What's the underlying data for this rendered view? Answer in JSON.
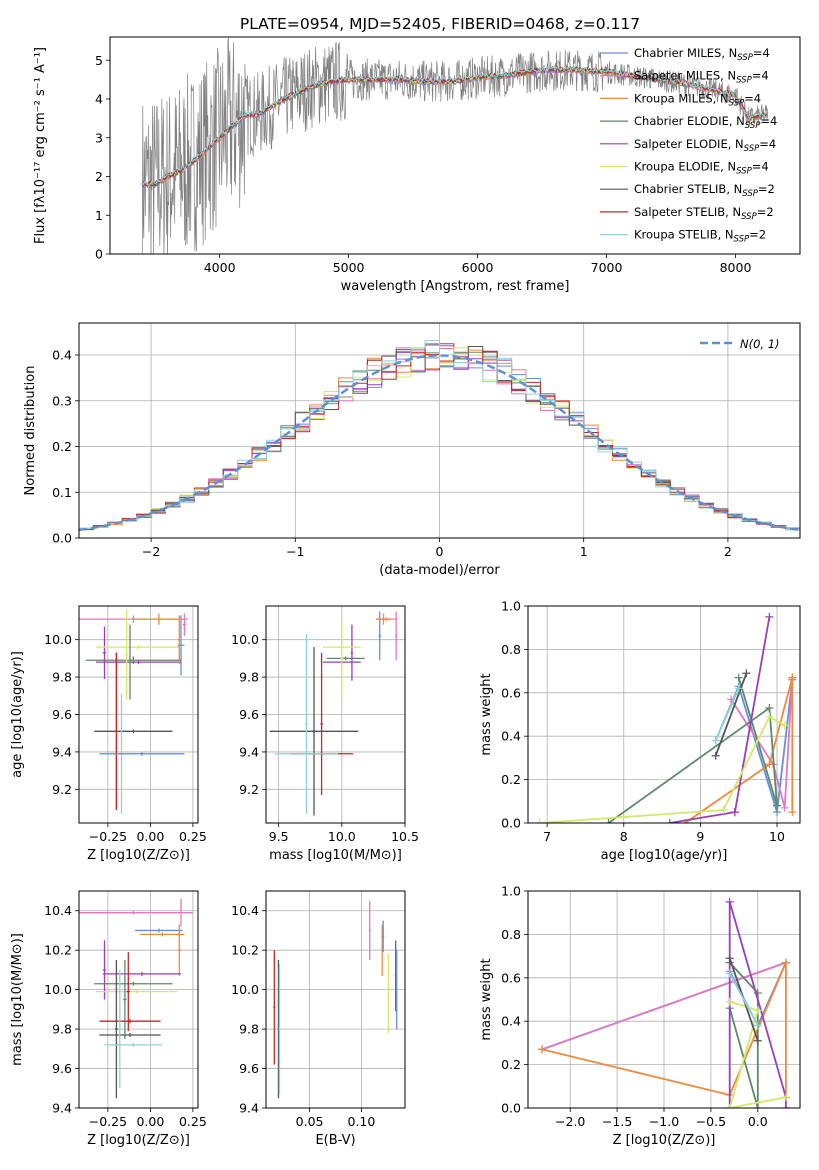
{
  "figure": {
    "title": "PLATE=0954, MJD=52405, FIBERID=0468, z=0.117"
  },
  "series_legend": [
    {
      "name": "Chabrier MILES, N",
      "sub": "SSP",
      "tail": "=4",
      "color": "#6a8fd8"
    },
    {
      "name": "Salpeter MILES, N",
      "sub": "SSP",
      "tail": "=4",
      "color": "#e377c2"
    },
    {
      "name": "Kroupa MILES, N",
      "sub": "SSP",
      "tail": "=4",
      "color": "#ee8a3c"
    },
    {
      "name": "Chabrier ELODIE, N",
      "sub": "SSP",
      "tail": "=4",
      "color": "#5d8a68"
    },
    {
      "name": "Salpeter ELODIE, N",
      "sub": "SSP",
      "tail": "=4",
      "color": "#9b3fb5"
    },
    {
      "name": "Kroupa ELODIE, N",
      "sub": "SSP",
      "tail": "=4",
      "color": "#d4e86a"
    },
    {
      "name": "Chabrier STELIB, N",
      "sub": "SSP",
      "tail": "=2",
      "color": "#555555"
    },
    {
      "name": "Salpeter STELIB, N",
      "sub": "SSP",
      "tail": "=2",
      "color": "#c62828"
    },
    {
      "name": "Kroupa STELIB, N",
      "sub": "SSP",
      "tail": "=2",
      "color": "#8fd3d8"
    }
  ],
  "chart_data": [
    {
      "id": "spectrum",
      "type": "line",
      "xlabel": "wavelength [Angstrom, rest frame]",
      "ylabel": "Flux [fλ10⁻¹⁷ erg cm⁻² s⁻¹ A⁻¹]",
      "xlim": [
        3150,
        8500
      ],
      "ylim": [
        0,
        5.6
      ],
      "xticks": [
        4000,
        5000,
        6000,
        7000,
        8000
      ],
      "yticks": [
        0,
        1,
        2,
        3,
        4,
        5
      ],
      "observed_color": "#808080",
      "model_color": "#7fd6d6",
      "model": {
        "x": [
          3400,
          3500,
          3600,
          3700,
          3800,
          3900,
          4000,
          4100,
          4200,
          4300,
          4400,
          4500,
          4600,
          4700,
          4800,
          4900,
          5000,
          5200,
          5400,
          5600,
          5800,
          6000,
          6200,
          6400,
          6600,
          6800,
          7000,
          7200,
          7400,
          7600,
          7800,
          8000,
          8100,
          8250
        ],
        "y": [
          1.8,
          1.8,
          2.0,
          2.15,
          2.4,
          2.7,
          3.0,
          3.3,
          3.6,
          3.6,
          3.8,
          4.0,
          4.15,
          4.3,
          4.4,
          4.45,
          4.5,
          4.5,
          4.5,
          4.45,
          4.45,
          4.55,
          4.6,
          4.7,
          4.75,
          4.75,
          4.7,
          4.6,
          4.5,
          4.4,
          4.25,
          4.1,
          3.5,
          3.6
        ]
      }
    },
    {
      "id": "residuals",
      "type": "histogram",
      "xlabel": "(data-model)/error",
      "ylabel": "Normed distribution",
      "xlim": [
        -2.5,
        2.5
      ],
      "ylim": [
        0,
        0.47
      ],
      "xticks": [
        -2,
        -1,
        0,
        1,
        2
      ],
      "xticklabels": [
        "−2",
        "−1",
        "0",
        "1",
        "2"
      ],
      "yticks": [
        0.0,
        0.1,
        0.2,
        0.3,
        0.4
      ],
      "reference_label": "N(0, 1)",
      "reference_color": "#5b8fd6",
      "bin_width": 0.1
    },
    {
      "id": "age_vs_Z",
      "type": "errorbar",
      "xlabel": "Z [log10(Z/Z⊙)]",
      "ylabel": "age  [log10(age/yr)]",
      "xlim": [
        -0.42,
        0.28
      ],
      "ylim": [
        9.02,
        10.18
      ],
      "xticks": [
        -0.25,
        0.0,
        0.25
      ],
      "xticklabels": [
        "−0.25",
        "0.00",
        "0.25"
      ],
      "yticks": [
        9.2,
        9.4,
        9.6,
        9.8,
        10.0
      ],
      "points": [
        {
          "s": 0,
          "x": 0.18,
          "y": 9.97,
          "xe": 0.02,
          "ye": 0.16
        },
        {
          "s": 1,
          "x": -0.1,
          "y": 10.11,
          "xe": 0.32,
          "ye": 0.02
        },
        {
          "s": 2,
          "x": 0.05,
          "y": 10.11,
          "xe": 0.15,
          "ye": 0.03
        },
        {
          "s": 3,
          "x": -0.1,
          "y": 9.89,
          "xe": 0.28,
          "ye": 0.02
        },
        {
          "s": 4,
          "x": -0.07,
          "y": 9.88,
          "xe": 0.25,
          "ye": 0.01
        },
        {
          "s": 4,
          "x": -0.27,
          "y": 9.93,
          "xe": 0.01,
          "ye": 0.14
        },
        {
          "s": 5,
          "x": -0.07,
          "y": 9.96,
          "xe": 0.25,
          "ye": 0.01
        },
        {
          "s": 5,
          "x": -0.14,
          "y": 9.92,
          "xe": 0.01,
          "ye": 0.24
        },
        {
          "s": 3,
          "x": -0.12,
          "y": 9.88,
          "xe": 0.01,
          "ye": 0.2
        },
        {
          "s": 6,
          "x": -0.2,
          "y": 9.51,
          "xe": 0.01,
          "ye": 0.42
        },
        {
          "s": 6,
          "x": -0.1,
          "y": 9.51,
          "xe": 0.23,
          "ye": 0.01
        },
        {
          "s": 7,
          "x": -0.2,
          "y": 9.51,
          "xe": 0.01,
          "ye": 0.42
        },
        {
          "s": 8,
          "x": -0.17,
          "y": 9.39,
          "xe": 0.01,
          "ye": 0.32
        },
        {
          "s": 8,
          "x": -0.05,
          "y": 9.39,
          "xe": 0.25,
          "ye": 0.01
        },
        {
          "s": 0,
          "x": -0.05,
          "y": 9.39,
          "xe": 0.25,
          "ye": 0.01
        },
        {
          "s": 2,
          "x": 0.17,
          "y": 10.0,
          "xe": 0.01,
          "ye": 0.13
        },
        {
          "s": 1,
          "x": 0.2,
          "y": 10.08,
          "xe": 0.01,
          "ye": 0.06
        }
      ]
    },
    {
      "id": "age_vs_mass",
      "type": "errorbar",
      "xlabel": "mass [log10(M/M⊙)]",
      "ylabel": "",
      "xlim": [
        9.4,
        10.5
      ],
      "ylim": [
        9.02,
        10.18
      ],
      "xticks": [
        9.5,
        10.0,
        10.5
      ],
      "xticklabels": [
        "9.5",
        "10.0",
        "10.5"
      ],
      "yticks": [
        9.2,
        9.4,
        9.6,
        9.8,
        10.0
      ],
      "points": [
        {
          "s": 0,
          "x": 10.3,
          "y": 10.02,
          "xe": 0.01,
          "ye": 0.13
        },
        {
          "s": 1,
          "x": 10.35,
          "y": 10.11,
          "xe": 0.08,
          "ye": 0.01
        },
        {
          "s": 1,
          "x": 10.43,
          "y": 10.02,
          "xe": 0.01,
          "ye": 0.13
        },
        {
          "s": 2,
          "x": 10.33,
          "y": 10.11,
          "xe": 0.06,
          "ye": 0.03
        },
        {
          "s": 3,
          "x": 10.03,
          "y": 9.9,
          "xe": 0.15,
          "ye": 0.01
        },
        {
          "s": 4,
          "x": 10.0,
          "y": 9.88,
          "xe": 0.15,
          "ye": 0.01
        },
        {
          "s": 4,
          "x": 10.08,
          "y": 9.93,
          "xe": 0.01,
          "ye": 0.15
        },
        {
          "s": 5,
          "x": 10.0,
          "y": 9.96,
          "xe": 0.15,
          "ye": 0.01
        },
        {
          "s": 5,
          "x": 10.0,
          "y": 9.9,
          "xe": 0.01,
          "ye": 0.2
        },
        {
          "s": 6,
          "x": 9.78,
          "y": 9.51,
          "xe": 0.35,
          "ye": 0.01
        },
        {
          "s": 6,
          "x": 9.78,
          "y": 9.51,
          "xe": 0.01,
          "ye": 0.45
        },
        {
          "s": 7,
          "x": 9.84,
          "y": 9.39,
          "xe": 0.25,
          "ye": 0.01
        },
        {
          "s": 7,
          "x": 9.84,
          "y": 9.55,
          "xe": 0.01,
          "ye": 0.38
        },
        {
          "s": 8,
          "x": 9.72,
          "y": 9.39,
          "xe": 0.25,
          "ye": 0.01
        },
        {
          "s": 8,
          "x": 9.72,
          "y": 9.55,
          "xe": 0.01,
          "ye": 0.48
        }
      ]
    },
    {
      "id": "massweight_vs_age",
      "type": "line",
      "xlabel": "age  [log10(age/yr)]",
      "ylabel": "mass weight",
      "xlim": [
        6.75,
        10.3
      ],
      "ylim": [
        0,
        1.0
      ],
      "xticks": [
        7,
        8,
        9,
        10
      ],
      "yticks": [
        0.0,
        0.2,
        0.4,
        0.6,
        0.8,
        1.0
      ],
      "lines": [
        {
          "s": 0,
          "x": [
            9.2,
            9.5,
            10.0,
            10.2
          ],
          "y": [
            0.38,
            0.63,
            0.05,
            0.66
          ]
        },
        {
          "s": 1,
          "x": [
            9.4,
            9.95,
            10.1,
            10.2
          ],
          "y": [
            0.57,
            0.27,
            0.07,
            0.67
          ]
        },
        {
          "s": 2,
          "x": [
            8.8,
            9.9,
            10.2,
            10.2
          ],
          "y": [
            0.0,
            0.27,
            0.67,
            0.05
          ]
        },
        {
          "s": 3,
          "x": [
            7.8,
            9.9,
            10.0,
            9.5
          ],
          "y": [
            0.0,
            0.53,
            0.08,
            0.67
          ]
        },
        {
          "s": 4,
          "x": [
            8.6,
            9.45,
            9.9,
            9.45
          ],
          "y": [
            0.0,
            0.05,
            0.95,
            0.05
          ]
        },
        {
          "s": 5,
          "x": [
            6.9,
            9.3,
            9.9,
            10.1
          ],
          "y": [
            0.0,
            0.06,
            0.49,
            0.45
          ]
        },
        {
          "s": 6,
          "x": [
            9.2,
            9.6
          ],
          "y": [
            0.31,
            0.69
          ]
        },
        {
          "s": 8,
          "x": [
            9.2,
            9.5
          ],
          "y": [
            0.38,
            0.62
          ]
        }
      ]
    },
    {
      "id": "mass_vs_Z",
      "type": "errorbar",
      "xlabel": "Z [log10(Z/Z⊙)]",
      "ylabel": "mass [log10(M/M⊙)]",
      "xlim": [
        -0.42,
        0.28
      ],
      "ylim": [
        9.4,
        10.5
      ],
      "xticks": [
        -0.25,
        0.0,
        0.25
      ],
      "xticklabels": [
        "−0.25",
        "0.00",
        "0.25"
      ],
      "yticks": [
        9.4,
        9.6,
        9.8,
        10.0,
        10.2,
        10.4
      ],
      "points": [
        {
          "s": 1,
          "x": -0.1,
          "y": 10.39,
          "xe": 0.35,
          "ye": 0.01
        },
        {
          "s": 1,
          "x": 0.18,
          "y": 10.39,
          "xe": 0.01,
          "ye": 0.07
        },
        {
          "s": 0,
          "x": 0.05,
          "y": 10.3,
          "xe": 0.14,
          "ye": 0.01
        },
        {
          "s": 2,
          "x": 0.07,
          "y": 10.28,
          "xe": 0.13,
          "ye": 0.01
        },
        {
          "s": 2,
          "x": 0.17,
          "y": 10.2,
          "xe": 0.01,
          "ye": 0.13
        },
        {
          "s": 4,
          "x": -0.05,
          "y": 10.08,
          "xe": 0.23,
          "ye": 0.01
        },
        {
          "s": 4,
          "x": -0.27,
          "y": 10.1,
          "xe": 0.01,
          "ye": 0.15
        },
        {
          "s": 5,
          "x": -0.08,
          "y": 9.99,
          "xe": 0.24,
          "ye": 0.01
        },
        {
          "s": 3,
          "x": -0.1,
          "y": 10.03,
          "xe": 0.23,
          "ye": 0.01
        },
        {
          "s": 3,
          "x": -0.15,
          "y": 9.95,
          "xe": 0.01,
          "ye": 0.2
        },
        {
          "s": 7,
          "x": -0.12,
          "y": 9.84,
          "xe": 0.18,
          "ye": 0.01
        },
        {
          "s": 7,
          "x": -0.13,
          "y": 9.99,
          "xe": 0.01,
          "ye": 0.2
        },
        {
          "s": 6,
          "x": -0.12,
          "y": 9.77,
          "xe": 0.18,
          "ye": 0.01
        },
        {
          "s": 6,
          "x": -0.2,
          "y": 9.8,
          "xe": 0.01,
          "ye": 0.35
        },
        {
          "s": 8,
          "x": -0.1,
          "y": 9.72,
          "xe": 0.17,
          "ye": 0.01
        },
        {
          "s": 8,
          "x": -0.18,
          "y": 9.8,
          "xe": 0.01,
          "ye": 0.3
        }
      ]
    },
    {
      "id": "mass_vs_EBV",
      "type": "errorbar",
      "xlabel": "E(B-V)",
      "ylabel": "",
      "xlim": [
        0.008,
        0.142
      ],
      "ylim": [
        9.4,
        10.5
      ],
      "xticks": [
        0.05,
        0.1
      ],
      "xticklabels": [
        "0.05",
        "0.10"
      ],
      "yticks": [
        9.4,
        9.6,
        9.8,
        10.0,
        10.2,
        10.4
      ],
      "points": [
        {
          "s": 7,
          "x": 0.016,
          "y": 9.91,
          "xe": 0.001,
          "ye": 0.29
        },
        {
          "s": 6,
          "x": 0.02,
          "y": 9.8,
          "xe": 0.001,
          "ye": 0.35
        },
        {
          "s": 8,
          "x": 0.021,
          "y": 9.8,
          "xe": 0.001,
          "ye": 0.33
        },
        {
          "s": 1,
          "x": 0.108,
          "y": 10.3,
          "xe": 0.001,
          "ye": 0.15
        },
        {
          "s": 2,
          "x": 0.12,
          "y": 10.2,
          "xe": 0.001,
          "ye": 0.13
        },
        {
          "s": 0,
          "x": 0.121,
          "y": 10.27,
          "xe": 0.001,
          "ye": 0.08
        },
        {
          "s": 5,
          "x": 0.126,
          "y": 9.98,
          "xe": 0.001,
          "ye": 0.2
        },
        {
          "s": 4,
          "x": 0.133,
          "y": 10.07,
          "xe": 0.001,
          "ye": 0.18
        },
        {
          "s": 0,
          "x": 0.134,
          "y": 10.0,
          "xe": 0.001,
          "ye": 0.2
        }
      ]
    },
    {
      "id": "massweight_vs_Z",
      "type": "line",
      "xlabel": "Z [log10(Z/Z⊙)]",
      "ylabel": "mass weight",
      "xlim": [
        -2.45,
        0.45
      ],
      "ylim": [
        0,
        1.0
      ],
      "xticks": [
        -2.0,
        -1.5,
        -1.0,
        -0.5,
        0.0
      ],
      "xticklabels": [
        "−2.0",
        "−1.5",
        "−1.0",
        "−0.5",
        "0.0"
      ],
      "yticks": [
        0.0,
        0.2,
        0.4,
        0.6,
        0.8,
        1.0
      ],
      "lines": [
        {
          "s": 0,
          "x": [
            -2.3,
            0.3,
            0.0,
            -0.3
          ],
          "y": [
            0.27,
            0.67,
            0.38,
            0.63
          ]
        },
        {
          "s": 1,
          "x": [
            -2.3,
            0.3
          ],
          "y": [
            0.27,
            0.67
          ]
        },
        {
          "s": 2,
          "x": [
            -2.3,
            -0.3,
            0.3,
            0.3
          ],
          "y": [
            0.27,
            0.06,
            0.67,
            0.05
          ]
        },
        {
          "s": 3,
          "x": [
            -0.3,
            0.0,
            0.0,
            -0.3
          ],
          "y": [
            0.67,
            0.53,
            0.0,
            0.46
          ]
        },
        {
          "s": 4,
          "x": [
            -0.3,
            -0.3,
            0.3,
            0.3
          ],
          "y": [
            0.0,
            0.95,
            0.05,
            0.0
          ]
        },
        {
          "s": 5,
          "x": [
            -0.3,
            0.0,
            -0.3,
            0.3
          ],
          "y": [
            0.49,
            0.45,
            0.0,
            0.05
          ]
        },
        {
          "s": 6,
          "x": [
            -0.3,
            0.0
          ],
          "y": [
            0.69,
            0.31
          ]
        },
        {
          "s": 8,
          "x": [
            -0.3,
            0.0
          ],
          "y": [
            0.62,
            0.38
          ]
        }
      ]
    }
  ]
}
